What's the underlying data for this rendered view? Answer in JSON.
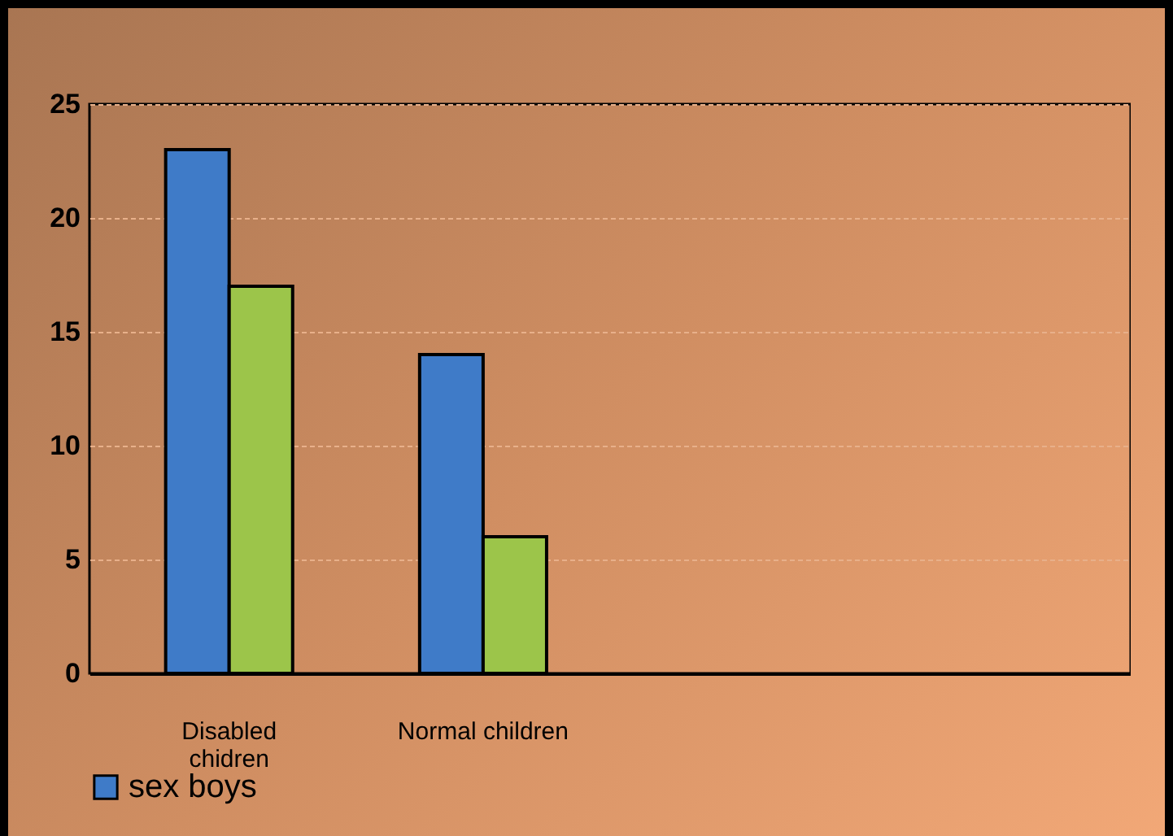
{
  "chart_data": {
    "type": "bar",
    "categories": [
      "Disabled chidren",
      "Normal children",
      null,
      null
    ],
    "series": [
      {
        "name": "sex boys",
        "color": "#3f7bc8",
        "values": [
          23,
          14,
          null,
          null
        ]
      },
      {
        "color": "#9cc54a",
        "values": [
          17,
          6,
          null,
          null
        ]
      }
    ],
    "ylim": [
      0,
      25
    ],
    "yticks": [
      0,
      5,
      10,
      15,
      20,
      25
    ],
    "grid": "y",
    "legend": "bottom"
  }
}
